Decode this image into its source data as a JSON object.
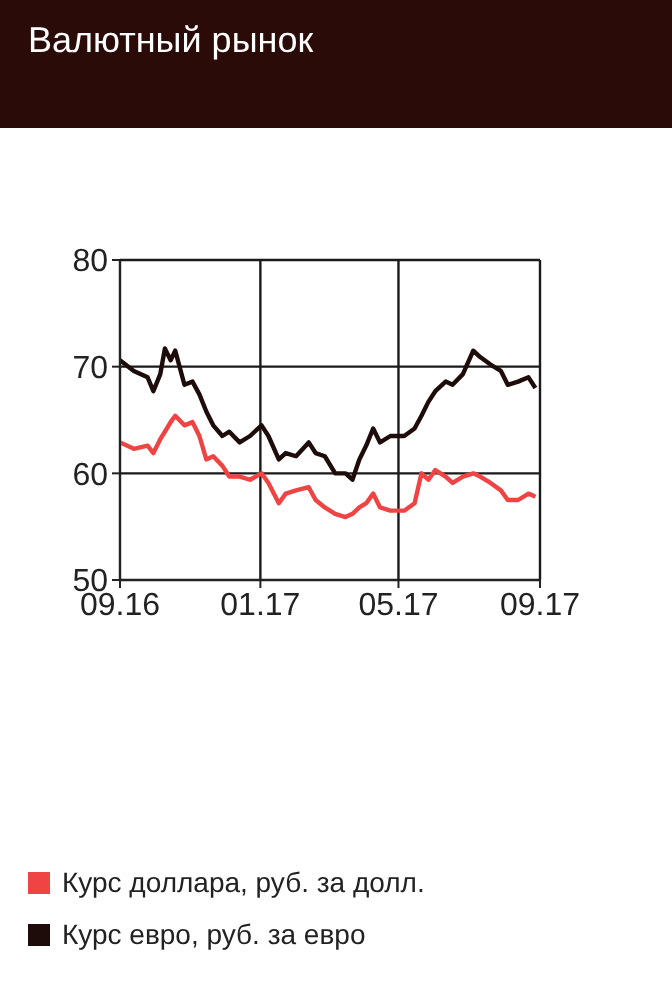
{
  "chart_data": {
    "type": "line",
    "title": "Валютный рынок",
    "x": [
      "2016-09-01",
      "2016-09-13",
      "2016-09-25",
      "2016-09-30",
      "2016-10-06",
      "2016-10-10",
      "2016-10-15",
      "2016-10-19",
      "2016-10-27",
      "2016-11-03",
      "2016-11-09",
      "2016-11-15",
      "2016-11-21",
      "2016-11-29",
      "2016-12-05",
      "2016-12-14",
      "2016-12-23",
      "2017-01-02",
      "2017-01-08",
      "2017-01-17",
      "2017-01-23",
      "2017-02-01",
      "2017-02-12",
      "2017-02-18",
      "2017-02-26",
      "2017-03-07",
      "2017-03-16",
      "2017-03-22",
      "2017-03-28",
      "2017-04-03",
      "2017-04-09",
      "2017-04-15",
      "2017-04-24",
      "2017-05-06",
      "2017-05-15",
      "2017-05-21",
      "2017-05-27",
      "2017-06-02",
      "2017-06-11",
      "2017-06-17",
      "2017-06-26",
      "2017-07-05",
      "2017-07-11",
      "2017-07-20",
      "2017-07-29",
      "2017-08-04",
      "2017-08-13",
      "2017-08-22",
      "2017-08-28"
    ],
    "series": [
      {
        "name": "Курс доллара, руб. за долл.",
        "color": "#f04444",
        "values": [
          62.9,
          62.3,
          62.6,
          61.9,
          63.2,
          63.9,
          64.8,
          65.4,
          64.5,
          64.8,
          63.5,
          61.3,
          61.6,
          60.7,
          59.7,
          59.7,
          59.4,
          60.0,
          59.1,
          57.2,
          58.1,
          58.4,
          58.7,
          57.5,
          56.8,
          56.2,
          55.9,
          56.2,
          56.8,
          57.2,
          58.1,
          56.8,
          56.5,
          56.5,
          57.2,
          60.0,
          59.4,
          60.3,
          59.7,
          59.1,
          59.7,
          60.0,
          59.7,
          59.1,
          58.4,
          57.5,
          57.5,
          58.1,
          57.8
        ]
      },
      {
        "name": "Курс евро, руб. за евро",
        "color": "#1e0c0a",
        "values": [
          70.6,
          69.6,
          69.0,
          67.7,
          69.3,
          71.7,
          70.6,
          71.5,
          68.3,
          68.6,
          67.4,
          65.8,
          64.5,
          63.5,
          63.9,
          62.9,
          63.5,
          64.5,
          63.5,
          61.3,
          61.9,
          61.6,
          62.9,
          61.9,
          61.6,
          60.0,
          60.0,
          59.4,
          61.3,
          62.6,
          64.2,
          62.9,
          63.5,
          63.5,
          64.2,
          65.4,
          66.7,
          67.7,
          68.6,
          68.3,
          69.3,
          71.5,
          70.9,
          70.2,
          69.6,
          68.3,
          68.6,
          69.0,
          68.0
        ]
      }
    ],
    "xlim": [
      "2016-09-01",
      "2017-09-01"
    ],
    "xticks": [
      {
        "value": "2016-09-01",
        "label": "09.16"
      },
      {
        "value": "2017-01-01",
        "label": "01.17"
      },
      {
        "value": "2017-05-01",
        "label": "05.17"
      },
      {
        "value": "2017-09-01",
        "label": "09.17"
      }
    ],
    "ylim": [
      50,
      80
    ],
    "yticks": [
      50,
      60,
      70,
      80
    ],
    "grid": true,
    "legend": "bottom",
    "line_style": "solid",
    "marker": "none"
  }
}
